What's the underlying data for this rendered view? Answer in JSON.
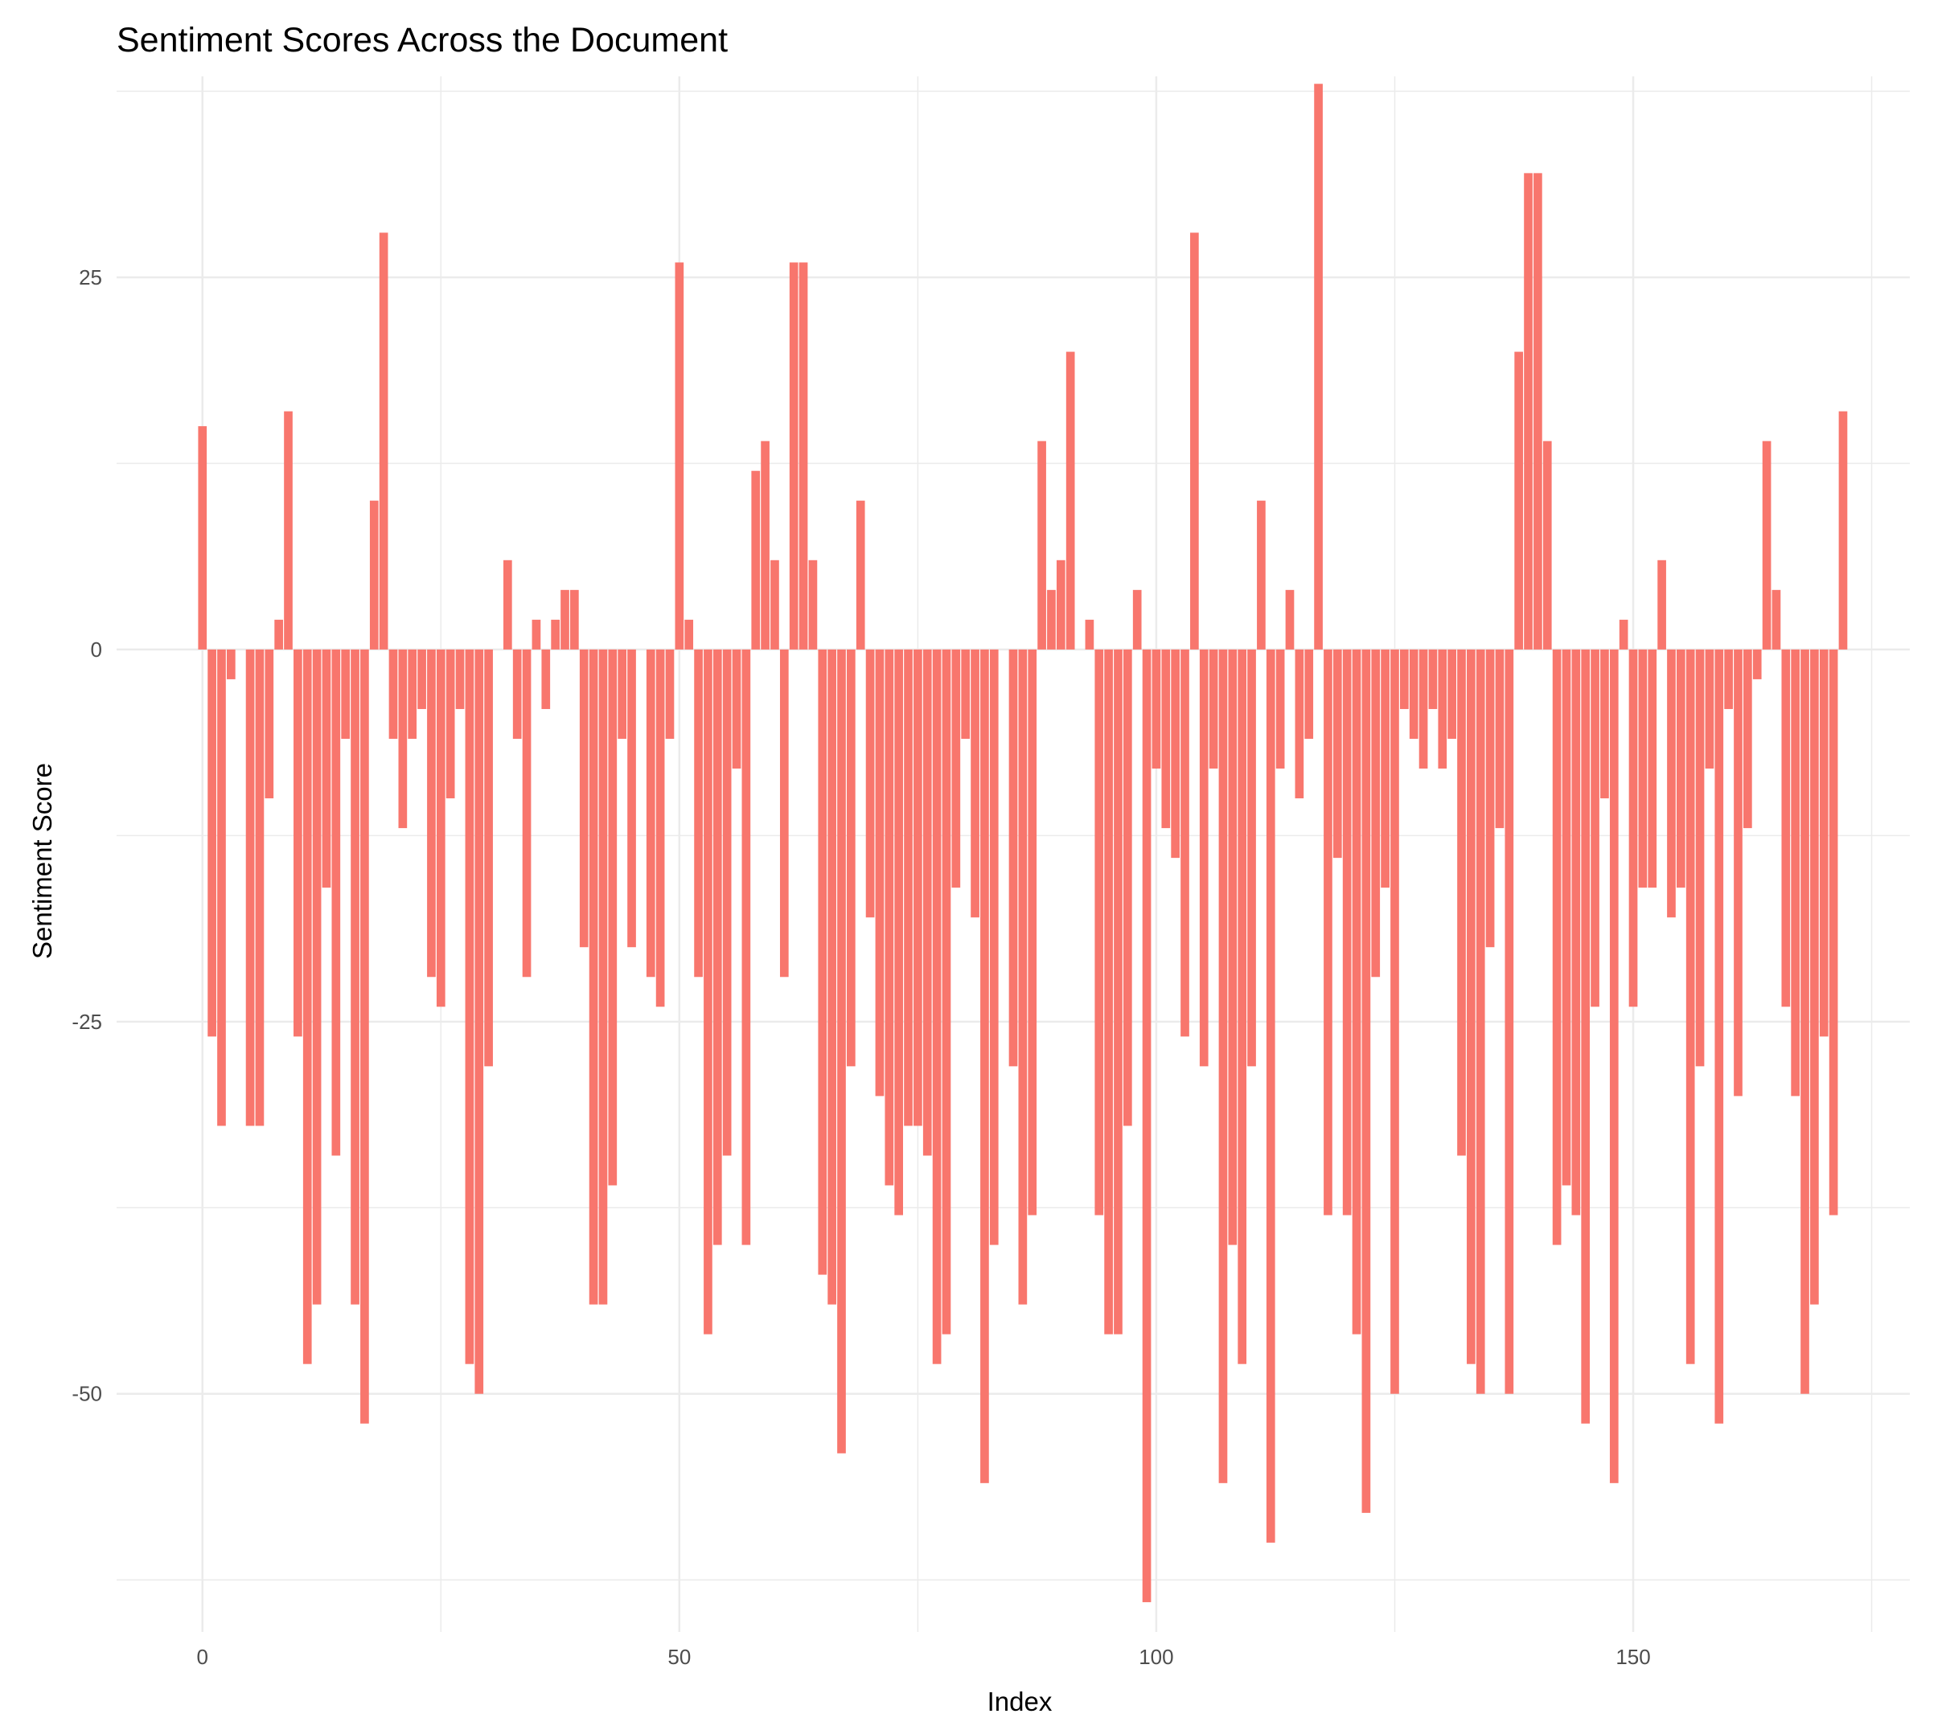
{
  "chart_data": {
    "type": "bar",
    "title": "Sentiment Scores Across the Document",
    "xlabel": "Index",
    "ylabel": "Sentiment Score",
    "xlim": [
      -9,
      179
    ],
    "ylim": [
      -66,
      38.5
    ],
    "x_ticks": [
      0,
      50,
      100,
      150
    ],
    "y_ticks": [
      25,
      0,
      -25,
      -50
    ],
    "x_tick_labels": [
      "0",
      "50",
      "100",
      "150"
    ],
    "y_tick_labels": [
      "25",
      "0",
      "-25",
      "-50"
    ],
    "grid": true,
    "legend": "none",
    "bar_color": "#f8766d",
    "x": [
      0,
      1,
      2,
      3,
      4,
      5,
      6,
      7,
      8,
      9,
      10,
      11,
      12,
      13,
      14,
      15,
      16,
      17,
      18,
      19,
      20,
      21,
      22,
      23,
      24,
      25,
      26,
      27,
      28,
      29,
      30,
      31,
      32,
      33,
      34,
      35,
      36,
      37,
      38,
      39,
      40,
      41,
      42,
      43,
      44,
      45,
      46,
      47,
      48,
      49,
      50,
      51,
      52,
      53,
      54,
      55,
      56,
      57,
      58,
      59,
      60,
      61,
      62,
      63,
      64,
      65,
      66,
      67,
      68,
      69,
      70,
      71,
      72,
      73,
      74,
      75,
      76,
      77,
      78,
      79,
      80,
      81,
      82,
      83,
      84,
      85,
      86,
      87,
      88,
      89,
      90,
      91,
      92,
      93,
      94,
      95,
      96,
      97,
      98,
      99,
      100,
      101,
      102,
      103,
      104,
      105,
      106,
      107,
      108,
      109,
      110,
      111,
      112,
      113,
      114,
      115,
      116,
      117,
      118,
      119,
      120,
      121,
      122,
      123,
      124,
      125,
      126,
      127,
      128,
      129,
      130,
      131,
      132,
      133,
      134,
      135,
      136,
      137,
      138,
      139,
      140,
      141,
      142,
      143,
      144,
      145,
      146,
      147,
      148,
      149,
      150,
      151,
      152,
      153,
      154,
      155,
      156,
      157,
      158,
      159,
      160,
      161,
      162,
      163,
      164,
      165,
      166,
      167,
      168,
      169,
      170,
      171,
      172
    ],
    "values": [
      15,
      -26,
      -32,
      -2,
      0,
      -32,
      -32,
      -10,
      2,
      16,
      -26,
      -48,
      -44,
      -16,
      -34,
      -6,
      -44,
      -52,
      10,
      28,
      -6,
      -12,
      -6,
      -4,
      -22,
      -24,
      -10,
      -4,
      -48,
      -50,
      -28,
      0,
      6,
      -6,
      -22,
      2,
      -4,
      2,
      4,
      4,
      -20,
      -44,
      -44,
      -36,
      -6,
      -20,
      0,
      -22,
      -24,
      -6,
      26,
      2,
      -22,
      -46,
      -40,
      -34,
      -8,
      -40,
      12,
      14,
      6,
      -22,
      26,
      26,
      6,
      -42,
      -44,
      -54,
      -28,
      10,
      -18,
      -30,
      -36,
      -38,
      -32,
      -32,
      -34,
      -48,
      -46,
      -16,
      -6,
      -18,
      -56,
      -40,
      0,
      -28,
      -44,
      -38,
      14,
      4,
      6,
      20,
      0,
      2,
      -38,
      -46,
      -46,
      -32,
      4,
      -64,
      -8,
      -12,
      -14,
      -26,
      28,
      -28,
      -8,
      -56,
      -40,
      -48,
      -28,
      10,
      -60,
      -8,
      4,
      -10,
      -6,
      38,
      -38,
      -14,
      -38,
      -46,
      -58,
      -22,
      -16,
      -50,
      -4,
      -6,
      -8,
      -4,
      -8,
      -6,
      -34,
      -48,
      -50,
      -20,
      -12,
      -50,
      20,
      32,
      32,
      14,
      -40,
      -36,
      -38,
      -52,
      -24,
      -10,
      -56,
      2,
      -24,
      -16,
      -16,
      6,
      -18,
      -16,
      -48,
      -28,
      -8,
      -52,
      -4,
      -30,
      -12,
      -2,
      14,
      4,
      -24,
      -30,
      -50,
      -44,
      -26,
      -38,
      16
    ]
  }
}
